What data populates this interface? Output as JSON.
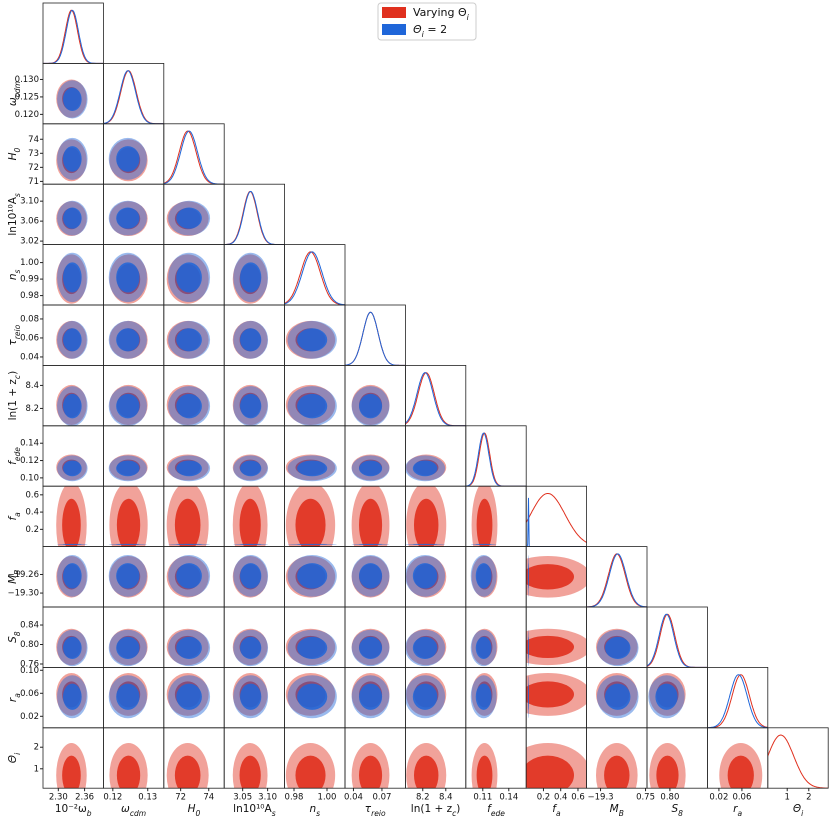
{
  "chart_data": {
    "type": "corner",
    "legend": "upper center",
    "params": [
      {
        "label": [
          "10⁻²ω",
          "b"
        ],
        "lim": [
          2.265,
          2.403
        ],
        "xticks": [
          {
            "value": 2.3,
            "label": "2.30"
          },
          {
            "value": 2.36,
            "label": "2.36"
          }
        ]
      },
      {
        "label": [
          "ω",
          "cdm"
        ],
        "lim": [
          0.1173,
          0.1346
        ],
        "xticks": [
          {
            "value": 0.12,
            "label": "0.12"
          },
          {
            "value": 0.13,
            "label": "0.13"
          }
        ],
        "yticks": [
          {
            "value": 0.12,
            "label": "0.120"
          },
          0.125,
          {
            "value": 0.13,
            "label": "0.130"
          }
        ]
      },
      {
        "label": [
          "H",
          "0"
        ],
        "lim": [
          70.8,
          75.1
        ],
        "xticks": [
          72,
          74
        ],
        "yticks": [
          71,
          72,
          73,
          74
        ]
      },
      {
        "label": [
          "ln10¹⁰A",
          "s"
        ],
        "lim": [
          3.013,
          3.134
        ],
        "xticks": [
          3.05,
          {
            "value": 3.1,
            "label": "3.10"
          }
        ],
        "yticks": [
          3.02,
          3.06,
          {
            "value": 3.1,
            "label": "3.10"
          }
        ]
      },
      {
        "label": [
          "n",
          "s"
        ],
        "lim": [
          0.9743,
          1.0109
        ],
        "xticks": [
          0.98,
          {
            "value": 1.0,
            "label": "1.00"
          }
        ],
        "yticks": [
          0.98,
          0.99,
          {
            "value": 1.0,
            "label": "1.00"
          }
        ]
      },
      {
        "label": [
          "τ",
          "reio"
        ],
        "lim": [
          0.0311,
          0.0947
        ],
        "xticks": [
          0.04,
          0.07
        ],
        "yticks": [
          0.04,
          0.06,
          0.08
        ]
      },
      {
        "label": [
          "ln(1 + z",
          "c",
          ")"
        ],
        "lim": [
          8.049,
          8.574
        ],
        "xticks": [
          8.2,
          8.4
        ],
        "yticks": [
          8.2,
          8.4
        ]
      },
      {
        "label": [
          "f",
          "ede"
        ],
        "lim": [
          0.0904,
          0.1601
        ],
        "xticks": [
          0.11,
          0.14
        ],
        "yticks": [
          {
            "value": 0.1,
            "label": "0.10"
          },
          0.12,
          0.14
        ]
      },
      {
        "label": [
          "f",
          "a"
        ],
        "lim": [
          0.0,
          0.7
        ],
        "xticks": [
          0.2,
          0.4,
          0.6
        ],
        "yticks": [
          0.2,
          0.4,
          0.6
        ]
      },
      {
        "label": [
          "M",
          "B"
        ],
        "lim": [
          -19.33,
          -19.2
        ],
        "xticks": [
          {
            "value": -19.3,
            "label": "−19.3"
          }
        ],
        "yticks": [
          {
            "value": -19.3,
            "label": "−19.30"
          },
          {
            "value": -19.26,
            "label": "−19.26"
          }
        ]
      },
      {
        "label": [
          "S",
          "8"
        ],
        "lim": [
          0.753,
          0.877
        ],
        "xticks": [
          0.75,
          {
            "value": 0.8,
            "label": "0.80"
          }
        ],
        "yticks": [
          0.76,
          {
            "value": 0.8,
            "label": "0.80"
          },
          0.84
        ]
      },
      {
        "label": [
          "r",
          "a"
        ],
        "lim": [
          0.0,
          0.105
        ],
        "xticks": [
          0.02,
          0.06
        ],
        "yticks": [
          0.02,
          0.06,
          {
            "value": 0.1,
            "label": "0.10"
          }
        ]
      },
      {
        "label": [
          "Θ",
          "i"
        ],
        "lim": [
          0.1,
          2.9
        ],
        "xticks": [
          1,
          2
        ],
        "yticks": [
          1,
          2
        ]
      }
    ],
    "series": [
      {
        "name": [
          "Varying Θ",
          "i"
        ],
        "color": "#e0301e",
        "mean": [
          2.33,
          0.1245,
          72.5,
          3.065,
          0.99,
          0.058,
          8.23,
          0.112,
          0.25,
          -19.265,
          0.795,
          0.058,
          0.7
        ],
        "sd": [
          0.014,
          0.0022,
          0.6,
          0.014,
          0.006,
          0.008,
          0.07,
          0.006,
          0.2,
          0.018,
          0.015,
          0.015,
          0.6
        ]
      },
      {
        "name": [
          "Θ",
          "i",
          " = 2"
        ],
        "color": "#1f66d9",
        "mean": [
          2.332,
          0.1243,
          72.6,
          3.066,
          0.991,
          0.058,
          8.22,
          0.111,
          0.025,
          -19.263,
          0.793,
          0.054,
          null
        ],
        "sd": [
          0.014,
          0.0022,
          0.6,
          0.014,
          0.006,
          0.008,
          0.07,
          0.006,
          0.003,
          0.018,
          0.015,
          0.015,
          null
        ]
      }
    ]
  }
}
